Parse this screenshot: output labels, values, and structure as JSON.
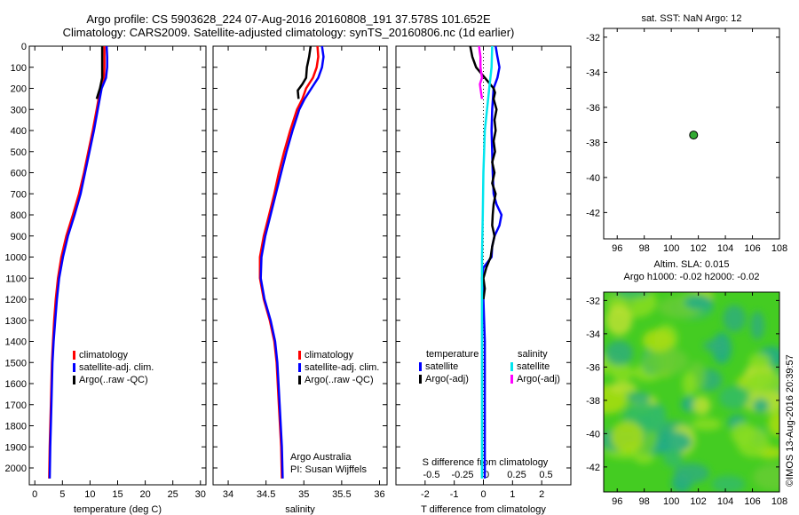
{
  "header": {
    "line1": "Argo profile: CS 5903628_224 07-Aug-2016 20160808_191 37.578S 101.652E",
    "line2": "Climatology: CARS2009. Satellite-adjusted climatology: synTS_20160806.nc (1d earlier)"
  },
  "credit": "©IMOS 13-Aug-2016 20:39:57",
  "colors": {
    "climatology": "#ff0000",
    "satellite": "#0000ff",
    "argo": "#000000",
    "sal_satellite": "#00e5ee",
    "sal_argo": "#ff00ff",
    "float_marker": "#33aa33"
  },
  "chart_data": [
    {
      "id": "temperature",
      "type": "line",
      "xlabel": "temperature (deg C)",
      "xlim": [
        -1,
        31
      ],
      "xticks": [
        0,
        5,
        10,
        15,
        20,
        25,
        30
      ],
      "ylim": [
        2080,
        0
      ],
      "yticks": [
        0,
        100,
        200,
        300,
        400,
        500,
        600,
        700,
        800,
        900,
        1000,
        1100,
        1200,
        1300,
        1400,
        1500,
        1600,
        1700,
        1800,
        1900,
        2000
      ],
      "legend": [
        "climatology",
        "satellite-adj. clim.",
        "Argo(..raw -QC)"
      ],
      "series": [
        {
          "name": "climatology",
          "color": "#ff0000",
          "depth": [
            0,
            50,
            100,
            150,
            200,
            300,
            400,
            500,
            600,
            700,
            800,
            900,
            1000,
            1100,
            1200,
            1300,
            1400,
            1500,
            1700,
            1900,
            2050
          ],
          "values": [
            12.6,
            12.6,
            12.6,
            12.5,
            11.9,
            11.2,
            10.5,
            9.7,
            8.9,
            8.0,
            6.9,
            5.7,
            4.8,
            4.2,
            3.8,
            3.5,
            3.3,
            3.1,
            2.9,
            2.7,
            2.6
          ]
        },
        {
          "name": "satellite-adj. clim.",
          "color": "#0000ff",
          "depth": [
            0,
            50,
            100,
            150,
            200,
            300,
            400,
            500,
            600,
            700,
            800,
            900,
            1000,
            1100,
            1200,
            1300,
            1400,
            1500,
            1700,
            1900,
            2050
          ],
          "values": [
            13.0,
            13.1,
            13.1,
            12.9,
            12.1,
            11.4,
            10.7,
            9.9,
            9.1,
            8.3,
            7.2,
            6.0,
            5.1,
            4.4,
            4.0,
            3.7,
            3.4,
            3.2,
            3.0,
            2.8,
            2.7
          ]
        },
        {
          "name": "Argo(..raw -QC)",
          "color": "#000000",
          "depth": [
            0,
            50,
            100,
            150,
            200,
            250
          ],
          "values": [
            12.2,
            12.2,
            12.2,
            12.2,
            11.8,
            11.2
          ]
        }
      ]
    },
    {
      "id": "salinity",
      "type": "line",
      "xlabel": "salinity",
      "xlim": [
        33.8,
        36.1
      ],
      "xticks": [
        34,
        34.5,
        35,
        35.5,
        36
      ],
      "ylim": [
        2080,
        0
      ],
      "legend": [
        "climatology",
        "satellite-adj. clim.",
        "Argo(..raw -QC)"
      ],
      "annotation": [
        "Argo Australia",
        "PI: Susan Wijffels"
      ],
      "series": [
        {
          "name": "climatology",
          "color": "#ff0000",
          "depth": [
            0,
            50,
            100,
            150,
            200,
            250,
            300,
            400,
            500,
            600,
            700,
            800,
            900,
            1000,
            1100,
            1200,
            1300,
            1400,
            1500,
            1700,
            1900,
            2050
          ],
          "values": [
            35.18,
            35.19,
            35.17,
            35.12,
            35.03,
            34.98,
            34.91,
            34.82,
            34.74,
            34.67,
            34.61,
            34.54,
            34.47,
            34.42,
            34.42,
            34.47,
            34.55,
            34.61,
            34.64,
            34.67,
            34.7,
            34.71
          ]
        },
        {
          "name": "satellite-adj. clim.",
          "color": "#0000ff",
          "depth": [
            0,
            50,
            100,
            150,
            200,
            250,
            300,
            400,
            500,
            600,
            700,
            800,
            900,
            1000,
            1100,
            1200,
            1300,
            1400,
            1500,
            1700,
            1900,
            2050
          ],
          "values": [
            35.24,
            35.26,
            35.24,
            35.19,
            35.1,
            35.01,
            34.94,
            34.85,
            34.77,
            34.7,
            34.63,
            34.56,
            34.49,
            34.44,
            34.43,
            34.48,
            34.56,
            34.62,
            34.65,
            34.68,
            34.71,
            34.72
          ]
        },
        {
          "name": "Argo(..raw -QC)",
          "color": "#000000",
          "depth": [
            0,
            50,
            100,
            150,
            180,
            210,
            250
          ],
          "values": [
            35.09,
            35.07,
            35.04,
            35.03,
            34.98,
            34.92,
            34.93
          ]
        }
      ]
    },
    {
      "id": "difference",
      "type": "line",
      "xlabel": "T difference from climatology",
      "xlim": [
        -3,
        3
      ],
      "xticks": [
        -2,
        -1,
        0,
        1,
        2
      ],
      "xticklabels": [
        "-2",
        "-1",
        "0",
        "1",
        "2"
      ],
      "top_axis_label": "S difference from climatology",
      "top_ticklabels": [
        "-0.5",
        "-0.25",
        "0",
        "0.25",
        "0.5"
      ],
      "ylim": [
        2080,
        0
      ],
      "legend": {
        "temperature": [
          "temperature",
          "satellite",
          "Argo(-adj)"
        ],
        "salinity": [
          "salinity",
          "satellite",
          "Argo(-adj)"
        ]
      },
      "series": [
        {
          "name": "temperature satellite",
          "color": "#0000ff",
          "depth": [
            0,
            50,
            100,
            150,
            200,
            300,
            400,
            500,
            600,
            700,
            750,
            800,
            850,
            900,
            950,
            1000,
            1050,
            1100,
            1200,
            1400,
            1600,
            1800,
            2050
          ],
          "values": [
            0.42,
            0.48,
            0.55,
            0.48,
            0.35,
            0.3,
            0.28,
            0.3,
            0.32,
            0.35,
            0.45,
            0.62,
            0.55,
            0.38,
            0.3,
            0.28,
            0.0,
            -0.05,
            0.0,
            0.05,
            0.05,
            0.05,
            0.05
          ]
        },
        {
          "name": "temperature Argo(-adj)",
          "color": "#000000",
          "depth": [
            0,
            50,
            100,
            150,
            200,
            220,
            250,
            300,
            350,
            400,
            450,
            500,
            550,
            600,
            650,
            700,
            750,
            800,
            850,
            900,
            950,
            1000,
            1050,
            1100,
            1150,
            1200
          ],
          "values": [
            -0.45,
            -0.38,
            -0.25,
            0.05,
            0.35,
            0.4,
            0.35,
            0.45,
            0.38,
            0.42,
            0.35,
            0.4,
            0.3,
            0.38,
            0.3,
            0.42,
            0.35,
            0.32,
            0.3,
            0.38,
            0.3,
            0.25,
            0.1,
            0.0,
            0.05,
            0.0
          ]
        },
        {
          "name": "salinity satellite",
          "color": "#00e5ee",
          "depth": [
            0,
            100,
            200,
            400,
            600,
            800,
            1000,
            1200,
            1400,
            1600,
            1800,
            2050
          ],
          "values": [
            0.3,
            0.28,
            0.2,
            0.05,
            0.0,
            -0.02,
            -0.05,
            -0.05,
            -0.05,
            -0.05,
            -0.05,
            -0.05
          ]
        },
        {
          "name": "salinity Argo(-adj)",
          "color": "#ff00ff",
          "depth": [
            0,
            50,
            100,
            150,
            180,
            200,
            250
          ],
          "values": [
            -0.15,
            -0.1,
            -0.1,
            -0.05,
            -0.12,
            -0.1,
            -0.05
          ]
        }
      ]
    },
    {
      "id": "sst_map",
      "type": "scatter",
      "title": "sat. SST: NaN Argo: 12",
      "xlim": [
        95,
        108
      ],
      "xticks": [
        96,
        98,
        100,
        102,
        104,
        106,
        108
      ],
      "ylim": [
        -43.5,
        -31.5
      ],
      "yticks": [
        -32,
        -34,
        -36,
        -38,
        -40,
        -42
      ],
      "points": [
        {
          "x": 101.65,
          "y": -37.58
        }
      ]
    },
    {
      "id": "sla_map",
      "type": "heatmap",
      "title_lines": [
        "Altim. SLA: 0.015",
        "Argo h1000: -0.02 h2000: -0.02"
      ],
      "xlim": [
        95,
        108
      ],
      "xticks": [
        96,
        98,
        100,
        102,
        104,
        106,
        108
      ],
      "ylim": [
        -43.5,
        -31.5
      ],
      "yticks": [
        -32,
        -34,
        -36,
        -38,
        -40,
        -42
      ]
    }
  ]
}
